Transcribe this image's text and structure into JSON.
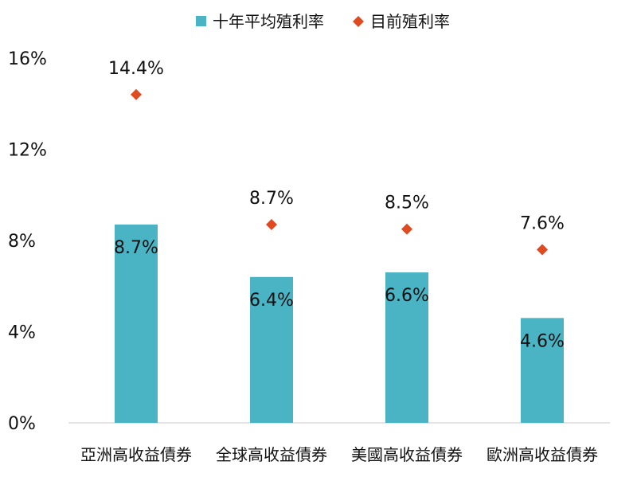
{
  "chart_data": {
    "type": "bar",
    "categories": [
      "亞洲高收益債券",
      "全球高收益債券",
      "美國高收益債券",
      "歐洲高收益債券"
    ],
    "series": [
      {
        "name": "十年平均殖利率",
        "mark": "bar",
        "color": "#4ab4c4",
        "values": [
          8.7,
          6.4,
          6.6,
          4.6
        ],
        "labels": [
          "8.7%",
          "6.4%",
          "6.6%",
          "4.6%"
        ]
      },
      {
        "name": "目前殖利率",
        "mark": "diamond",
        "color": "#e04a20",
        "values": [
          14.4,
          8.7,
          8.5,
          7.6
        ],
        "labels": [
          "14.4%",
          "8.7%",
          "8.5%",
          "7.6%"
        ]
      }
    ],
    "ylim": [
      0,
      16
    ],
    "yticks": [
      0,
      4,
      8,
      12,
      16
    ],
    "ytick_labels": [
      "0%",
      "4%",
      "8%",
      "12%",
      "16%"
    ],
    "grid": false,
    "legend_position": "top"
  }
}
